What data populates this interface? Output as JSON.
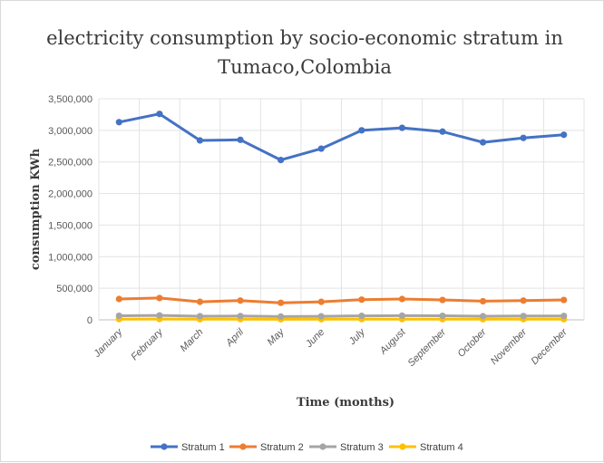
{
  "chart_data": {
    "type": "line",
    "title_lines": [
      "electricity consumption by socio-economic stratum in",
      "Tumaco,Colombia"
    ],
    "xlabel": "Time (months)",
    "ylabel": "consumption KWh",
    "categories": [
      "January",
      "February",
      "March",
      "April",
      "May",
      "June",
      "July",
      "August",
      "September",
      "October",
      "November",
      "December"
    ],
    "ylim": [
      0,
      3500000
    ],
    "yticks": [
      0,
      500000,
      1000000,
      1500000,
      2000000,
      2500000,
      3000000,
      3500000
    ],
    "ytick_labels": [
      "0",
      "500,000",
      "1,000,000",
      "1,500,000",
      "2,000,000",
      "2,500,000",
      "3,000,000",
      "3,500,000"
    ],
    "grid": true,
    "legend_position": "bottom",
    "series": [
      {
        "name": "Stratum 1",
        "color": "#4472c4",
        "values": [
          3130000,
          3260000,
          2840000,
          2850000,
          2530000,
          2710000,
          3000000,
          3040000,
          2980000,
          2810000,
          2880000,
          2930000
        ]
      },
      {
        "name": "Stratum 2",
        "color": "#ed7d31",
        "values": [
          330000,
          345000,
          285000,
          305000,
          270000,
          285000,
          320000,
          330000,
          315000,
          295000,
          305000,
          315000
        ]
      },
      {
        "name": "Stratum 3",
        "color": "#a5a5a5",
        "values": [
          65000,
          70000,
          58000,
          60000,
          52000,
          56000,
          63000,
          66000,
          64000,
          58000,
          60000,
          62000
        ]
      },
      {
        "name": "Stratum 4",
        "color": "#ffc000",
        "values": [
          12000,
          13000,
          10000,
          11000,
          9000,
          10000,
          12000,
          12000,
          11000,
          10000,
          11000,
          11000
        ]
      }
    ]
  }
}
